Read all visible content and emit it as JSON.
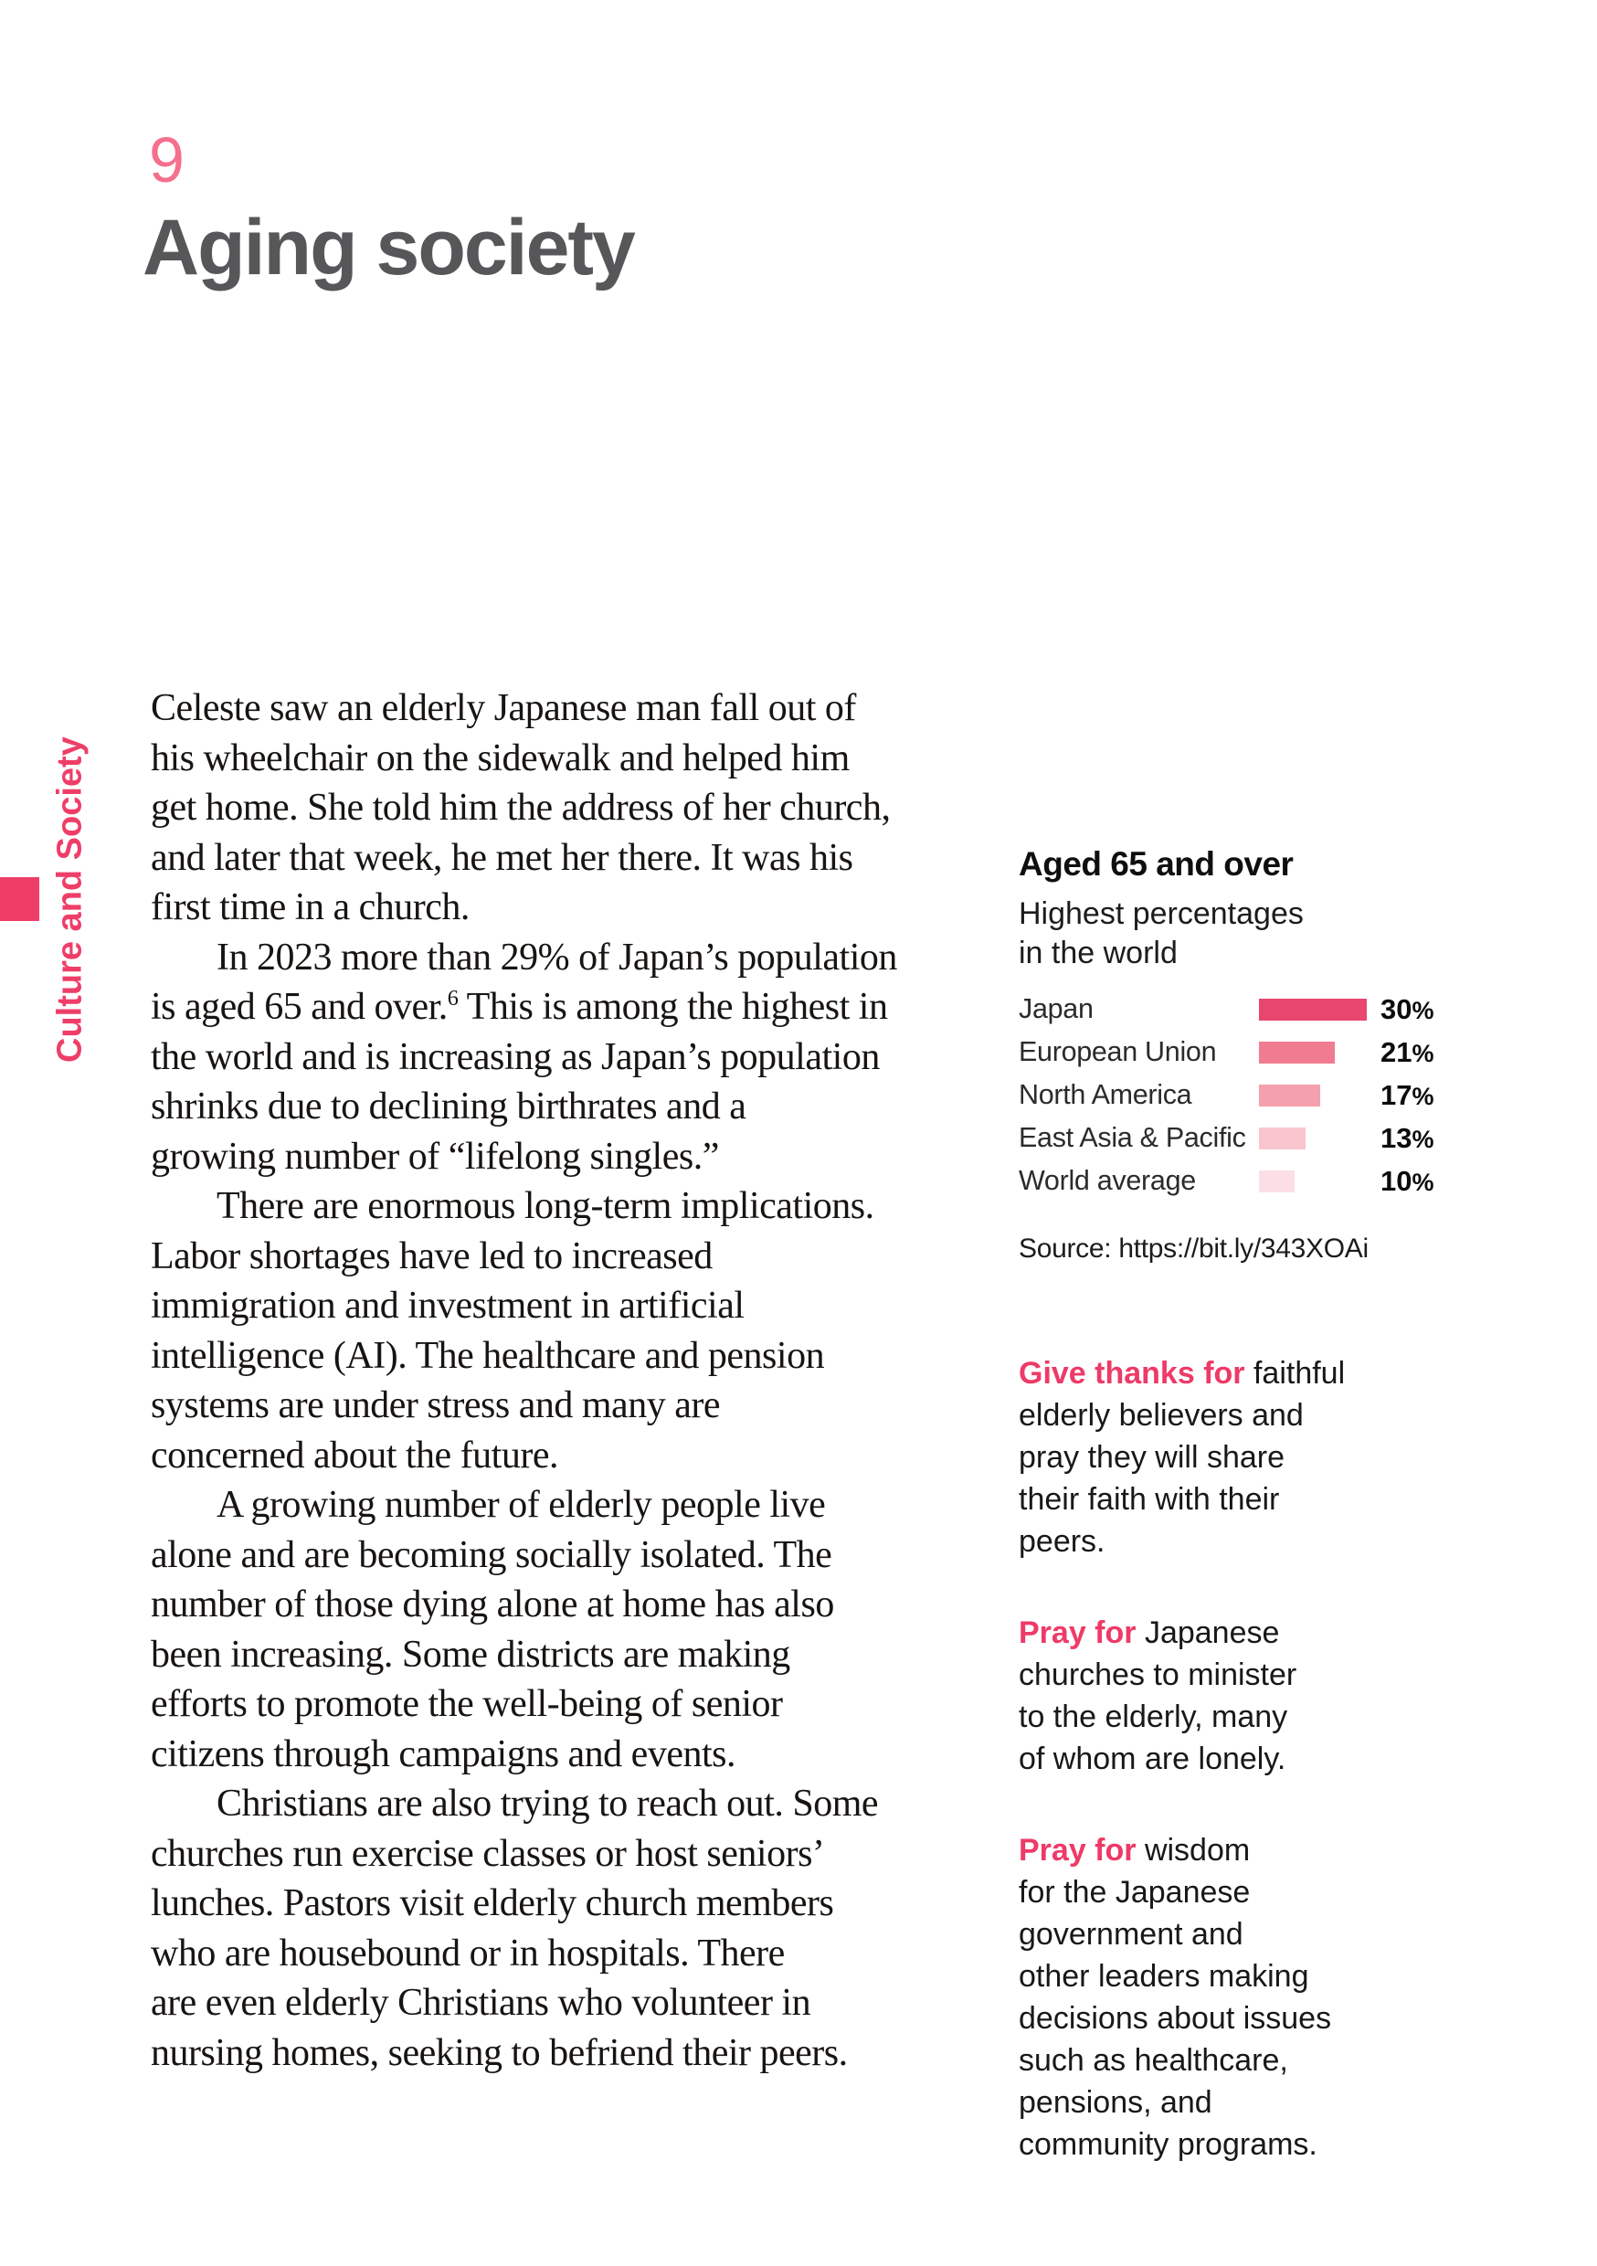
{
  "page": {
    "chapter_number": "9",
    "title": "Aging society",
    "sidebar_label": "Culture and Society"
  },
  "body": {
    "p1": "Celeste saw an elderly Japanese man fall out of\nhis wheelchair on the sidewalk and helped him\nget home. She told him the address of her church,\nand later that week, he met her there. It was his\nfirst time in a church.",
    "p2_pre": "In 2023 more than 29% of Japan’s population\nis aged 65 and over.",
    "p2_footnote": "6",
    "p2_post": " This is among the highest in\nthe world and is increasing as Japan’s population\nshrinks due to declining birthrates and a\ngrowing number of “lifelong singles.”",
    "p3": "There are enormous long-term implications.\nLabor shortages have led to increased\nimmigration and investment in artificial\nintelligence (AI). The healthcare and pension\nsystems are under stress and many are\nconcerned about the future.",
    "p4": "A growing number of elderly people live\nalone and are becoming socially isolated. The\nnumber of those dying alone at home has also\nbeen increasing. Some districts are making\nefforts to promote the well-being of senior\ncitizens through campaigns and events.",
    "p5": "Christians are also trying to reach out. Some\nchurches run exercise classes or host seniors’\nlunches. Pastors visit elderly church members\nwho are housebound or in hospitals. There\nare even elderly Christians who volunteer in\nnursing homes, seeking to befriend their peers."
  },
  "chart_data": {
    "type": "bar",
    "title": "Aged 65 and over",
    "subtitle": "Highest percentages\nin the world",
    "categories": [
      "Japan",
      "European Union",
      "North America",
      "East Asia & Pacific",
      "World average"
    ],
    "values": [
      30,
      21,
      17,
      13,
      10
    ],
    "unit": "%",
    "xlim": [
      0,
      30
    ],
    "bar_colors": [
      "#e8466f",
      "#f17b91",
      "#f5a0ae",
      "#f9c5ce",
      "#fcdfe4"
    ],
    "legend_position": "none",
    "grid": false,
    "source": "Source: https://bit.ly/343XOAi"
  },
  "prayers": [
    {
      "lead": "Give thanks for",
      "text": " faithful\nelderly believers and\npray they will share\ntheir faith with their\npeers."
    },
    {
      "lead": "Pray for",
      "text": " Japanese\nchurches to minister\nto the elderly, many\nof whom are lonely."
    },
    {
      "lead": "Pray for",
      "text": " wisdom\nfor the Japanese\ngovernment and\nother leaders making\ndecisions about issues\nsuch as healthcare,\npensions, and\ncommunity programs."
    }
  ],
  "colors": {
    "accent_pink": "#ee3a67",
    "chapter_pink": "#f4708d",
    "title_gray": "#57575a"
  }
}
